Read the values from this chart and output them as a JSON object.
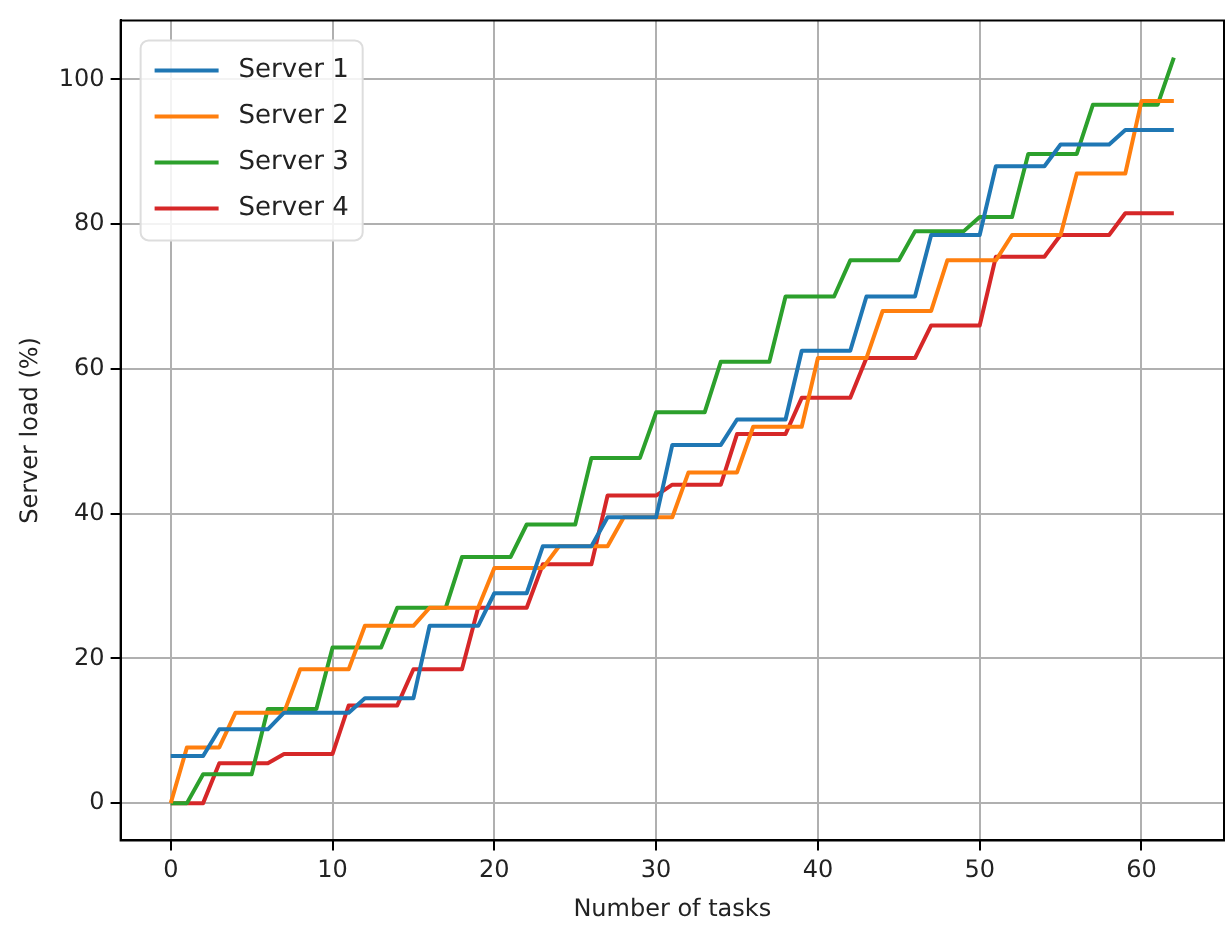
{
  "chart_data": {
    "type": "line",
    "xlabel": "Number of tasks",
    "ylabel": "Server load (%)",
    "x": [
      0,
      1,
      2,
      3,
      4,
      5,
      6,
      7,
      8,
      9,
      10,
      11,
      12,
      13,
      14,
      15,
      16,
      17,
      18,
      19,
      20,
      21,
      22,
      23,
      24,
      25,
      26,
      27,
      28,
      29,
      30,
      31,
      32,
      33,
      34,
      35,
      36,
      37,
      38,
      39,
      40,
      41,
      42,
      43,
      44,
      45,
      46,
      47,
      48,
      49,
      50,
      51,
      52,
      53,
      54,
      55,
      56,
      57,
      58,
      59,
      60,
      61,
      62
    ],
    "series": [
      {
        "name": "Server 1",
        "color": "#1f77b4",
        "values": [
          6.5,
          6.5,
          6.5,
          10.2,
          10.2,
          10.2,
          10.2,
          12.5,
          12.5,
          12.5,
          12.5,
          12.5,
          14.5,
          14.5,
          14.5,
          14.5,
          24.5,
          24.5,
          24.5,
          24.5,
          29,
          29,
          29,
          35.5,
          35.5,
          35.5,
          35.5,
          39.5,
          39.5,
          39.5,
          39.5,
          49.5,
          49.5,
          49.5,
          49.5,
          53,
          53,
          53,
          53,
          62.5,
          62.5,
          62.5,
          62.5,
          70,
          70,
          70,
          70,
          78.5,
          78.5,
          78.5,
          78.5,
          88,
          88,
          88,
          88,
          91,
          91,
          91,
          91,
          93,
          93,
          93,
          93
        ]
      },
      {
        "name": "Server 2",
        "color": "#ff7f0e",
        "values": [
          0,
          7.7,
          7.7,
          7.7,
          12.5,
          12.5,
          12.5,
          12.5,
          18.5,
          18.5,
          18.5,
          18.5,
          24.5,
          24.5,
          24.5,
          24.5,
          27,
          27,
          27,
          27,
          32.5,
          32.5,
          32.5,
          32.5,
          35.5,
          35.5,
          35.5,
          35.5,
          39.5,
          39.5,
          39.5,
          39.5,
          45.7,
          45.7,
          45.7,
          45.7,
          52,
          52,
          52,
          52,
          61.5,
          61.5,
          61.5,
          61.5,
          68,
          68,
          68,
          68,
          75,
          75,
          75,
          75,
          78.5,
          78.5,
          78.5,
          78.5,
          87,
          87,
          87,
          87,
          97,
          97,
          97
        ]
      },
      {
        "name": "Server 3",
        "color": "#2ca02c",
        "values": [
          0,
          0,
          4,
          4,
          4,
          4,
          13,
          13,
          13,
          13,
          21.5,
          21.5,
          21.5,
          21.5,
          27,
          27,
          27,
          27,
          34,
          34,
          34,
          34,
          38.5,
          38.5,
          38.5,
          38.5,
          47.7,
          47.7,
          47.7,
          47.7,
          54,
          54,
          54,
          54,
          61,
          61,
          61,
          61,
          70,
          70,
          70,
          70,
          75,
          75,
          75,
          75,
          79,
          79,
          79,
          79,
          81,
          81,
          81,
          89.7,
          89.7,
          89.7,
          89.7,
          96.5,
          96.5,
          96.5,
          96.5,
          96.5,
          103
        ]
      },
      {
        "name": "Server 4",
        "color": "#d62728",
        "values": [
          0,
          0,
          0,
          5.5,
          5.5,
          5.5,
          5.5,
          6.8,
          6.8,
          6.8,
          6.8,
          13.5,
          13.5,
          13.5,
          13.5,
          18.5,
          18.5,
          18.5,
          18.5,
          27,
          27,
          27,
          27,
          33,
          33,
          33,
          33,
          42.5,
          42.5,
          42.5,
          42.5,
          44,
          44,
          44,
          44,
          51,
          51,
          51,
          51,
          56,
          56,
          56,
          56,
          61.5,
          61.5,
          61.5,
          61.5,
          66,
          66,
          66,
          66,
          75.5,
          75.5,
          75.5,
          75.5,
          78.5,
          78.5,
          78.5,
          78.5,
          81.5,
          81.5,
          81.5,
          81.5
        ]
      }
    ],
    "xlim": [
      -3.1,
      65.1
    ],
    "xticks": [
      0,
      10,
      20,
      30,
      40,
      50,
      60
    ],
    "ylim": [
      -5.15,
      108.15
    ],
    "yticks": [
      0,
      20,
      40,
      60,
      80,
      100
    ],
    "grid": true,
    "legend": "top left"
  }
}
